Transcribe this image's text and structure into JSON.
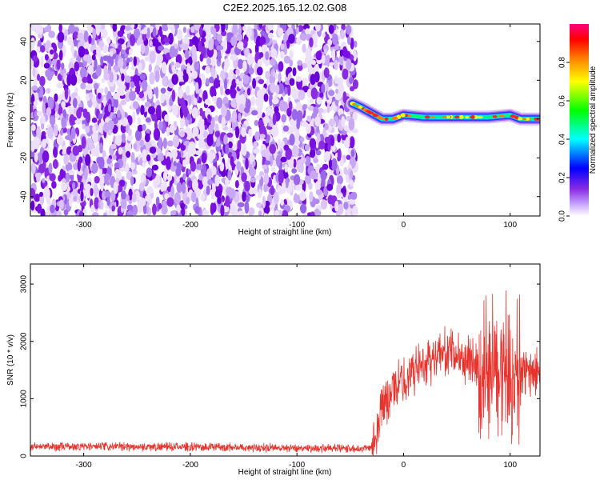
{
  "title": "C2E2.2025.165.12.02.G08",
  "chart_data": [
    {
      "type": "heatmap",
      "xlabel": "Height of straight line (km)",
      "ylabel": "Frequency (Hz)",
      "xlim": [
        -350,
        128
      ],
      "ylim": [
        -50,
        49
      ],
      "xticks": [
        -300,
        -200,
        -100,
        0,
        100
      ],
      "yticks": [
        -40,
        -20,
        0,
        20,
        40
      ],
      "noise_region_x": [
        -350,
        -45
      ],
      "signal_trace": {
        "x": [
          -48,
          -40,
          -30,
          -20,
          -10,
          0,
          20,
          40,
          60,
          80,
          100,
          110,
          128
        ],
        "y": [
          8,
          6,
          3,
          0,
          0,
          2,
          1,
          1,
          1,
          1,
          2,
          0,
          0
        ]
      },
      "colorbar": {
        "label": "Normalized spectral amplitude",
        "ticks": [
          "0.0",
          "0.2",
          "0.4",
          "0.6",
          "0.8"
        ],
        "range": [
          0,
          1
        ],
        "colormap": [
          "#ffffff",
          "#8a2be2",
          "#0000ff",
          "#00ffff",
          "#00ff00",
          "#ffff00",
          "#ff8000",
          "#ff0000",
          "#ff0080"
        ]
      }
    },
    {
      "type": "line",
      "xlabel": "Height of straight line (km)",
      "ylabel": "SNR (10 * v/v)",
      "xlim": [
        -350,
        128
      ],
      "ylim": [
        0,
        3350
      ],
      "xticks": [
        -300,
        -200,
        -100,
        0,
        100
      ],
      "yticks": [
        0,
        1000,
        2000,
        3000
      ],
      "color": "#e8322c",
      "series": [
        {
          "x": [
            -350,
            -300,
            -250,
            -200,
            -150,
            -100,
            -50,
            -30,
            -25,
            -20,
            -15,
            -10,
            0,
            10,
            20,
            30,
            40,
            50,
            60,
            70,
            75,
            80,
            85,
            90,
            95,
            100,
            105,
            110,
            120,
            128
          ],
          "y": [
            160,
            165,
            160,
            160,
            150,
            140,
            130,
            150,
            500,
            900,
            1000,
            1150,
            1300,
            1500,
            1650,
            1750,
            1800,
            1750,
            1700,
            1650,
            1300,
            1500,
            1400,
            1600,
            1500,
            1450,
            1300,
            1450,
            1450,
            1450
          ]
        }
      ]
    }
  ]
}
